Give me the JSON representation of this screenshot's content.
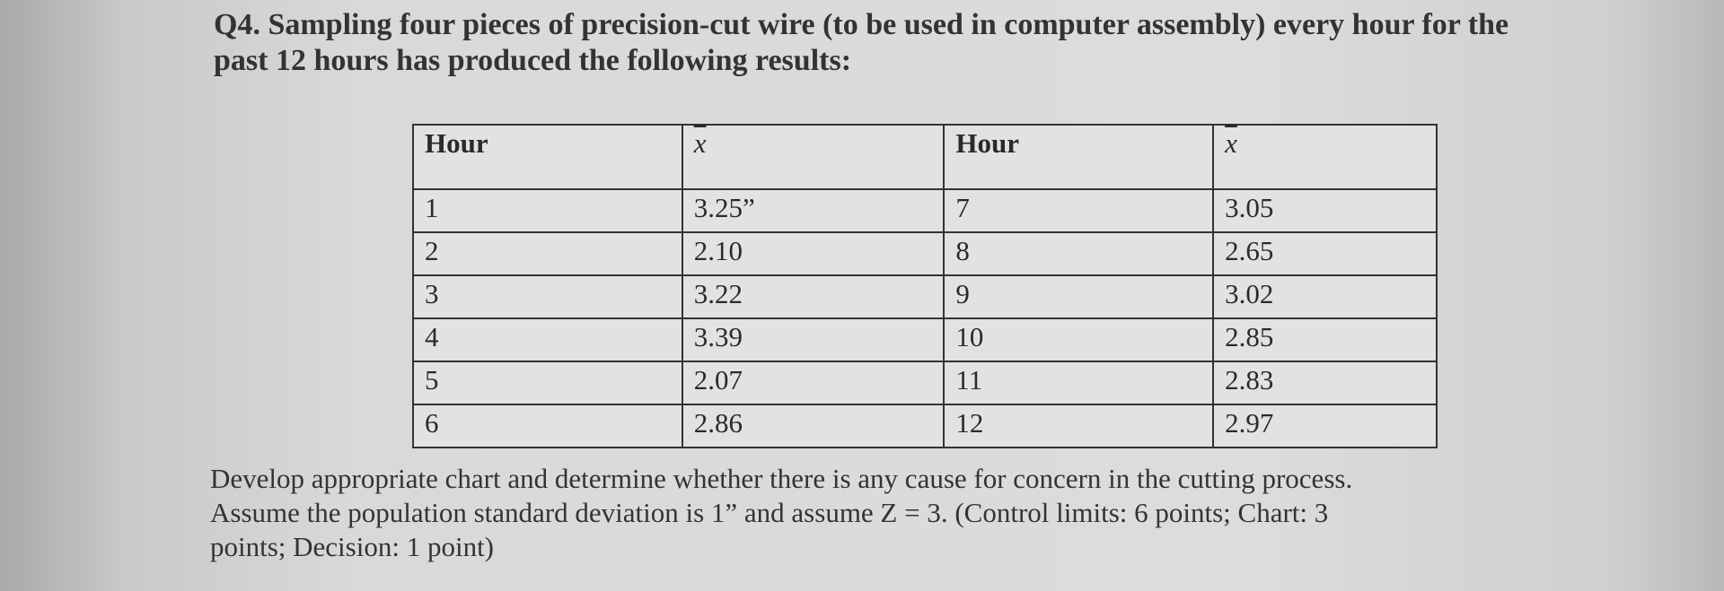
{
  "question": {
    "label": "Q4.",
    "intro_lines": [
      "Sampling four pieces of precision-cut wire (to be used in computer assembly) every hour for the",
      "past 12 hours has produced the following results:"
    ]
  },
  "table": {
    "headers": [
      "Hour",
      "x",
      "Hour",
      "x"
    ],
    "rows": [
      [
        "1",
        "3.25”",
        "7",
        "3.05"
      ],
      [
        "2",
        "2.10",
        "8",
        "2.65"
      ],
      [
        "3",
        "3.22",
        "9",
        "3.02"
      ],
      [
        "4",
        "3.39",
        "10",
        "2.85"
      ],
      [
        "5",
        "2.07",
        "11",
        "2.83"
      ],
      [
        "6",
        "2.86",
        "12",
        "2.97"
      ]
    ]
  },
  "instructions": {
    "lines": [
      "Develop appropriate chart and determine whether there is any cause for concern in the cutting process.",
      "Assume the population standard deviation is 1” and assume Z = 3. (Control limits: 6 points; Chart: 3",
      "points; Decision: 1 point)"
    ]
  }
}
